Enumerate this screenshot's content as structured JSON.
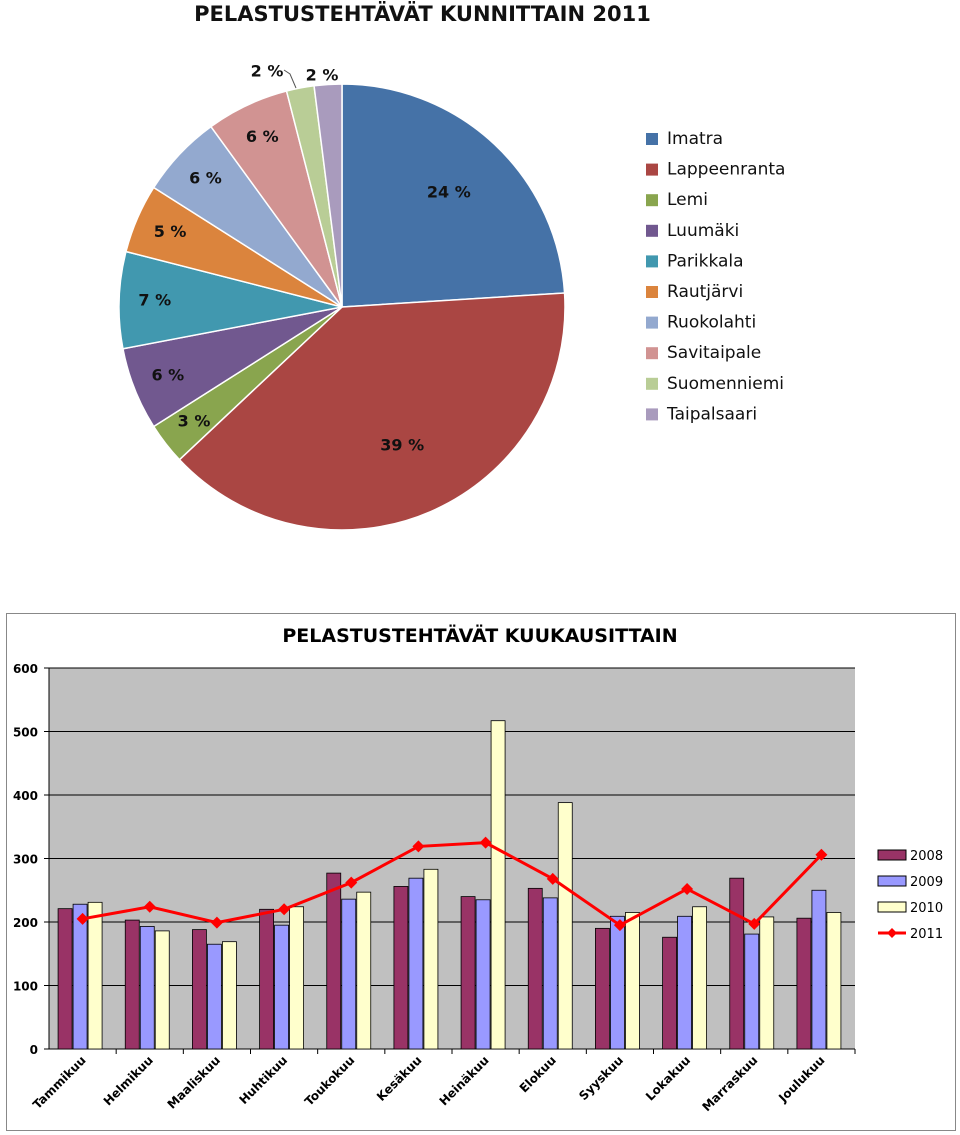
{
  "chart_data": [
    {
      "type": "pie",
      "title": "PELASTUSTEHTÄVÄT KUNNITTAIN 2011",
      "categories": [
        "Imatra",
        "Lappeenranta",
        "Lemi",
        "Luumäki",
        "Parikkala",
        "Rautjärvi",
        "Ruokolahti",
        "Savitaipale",
        "Suomenniemi",
        "Taipalsaari"
      ],
      "values": [
        24,
        39,
        3,
        6,
        7,
        5,
        6,
        6,
        2,
        2
      ],
      "labels": [
        "24 %",
        "39 %",
        "3 %",
        "6 %",
        "7 %",
        "5 %",
        "6 %",
        "6 %",
        "2 %",
        "2 %"
      ],
      "colors": [
        "#4572A7",
        "#AA4643",
        "#89A54E",
        "#71588F",
        "#4198AF",
        "#DB843D",
        "#93A9CF",
        "#D19392",
        "#B9CD96",
        "#A99BBD"
      ],
      "legend_position": "right"
    },
    {
      "type": "bar",
      "title": "PELASTUSTEHTÄVÄT KUUKAUSITTAIN",
      "categories": [
        "Tammikuu",
        "Helmikuu",
        "Maaliskuu",
        "Huhtikuu",
        "Toukokuu",
        "Kesäkuu",
        "Heinäkuu",
        "Elokuu",
        "Syyskuu",
        "Lokakuu",
        "Marraskuu",
        "Joulukuu"
      ],
      "yticks": [
        "0",
        "100",
        "200",
        "300",
        "400",
        "500",
        "600"
      ],
      "ylim": [
        0,
        600
      ],
      "grid": true,
      "legend_position": "right",
      "series": [
        {
          "name": "2008",
          "type": "bar",
          "color": "#993366",
          "values": [
            221,
            203,
            188,
            220,
            277,
            256,
            240,
            253,
            190,
            176,
            269,
            206
          ]
        },
        {
          "name": "2009",
          "type": "bar",
          "color": "#9999FF",
          "values": [
            228,
            193,
            165,
            195,
            236,
            269,
            235,
            238,
            209,
            209,
            181,
            250
          ]
        },
        {
          "name": "2010",
          "type": "bar",
          "color": "#FFFFCC",
          "values": [
            231,
            186,
            169,
            224,
            247,
            283,
            517,
            388,
            215,
            224,
            208,
            215
          ]
        },
        {
          "name": "2011",
          "type": "line",
          "color": "#FF0000",
          "values": [
            205,
            224,
            199,
            220,
            262,
            319,
            325,
            268,
            195,
            252,
            197,
            306
          ]
        }
      ]
    }
  ]
}
